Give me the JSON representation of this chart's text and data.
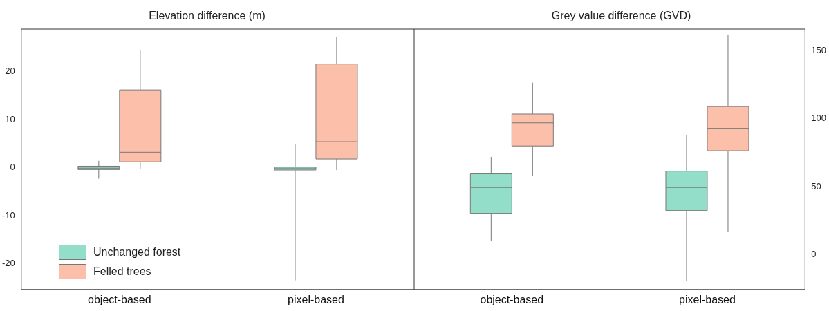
{
  "chart_data": [
    {
      "type": "box",
      "title": "Elevation difference (m)",
      "categories": [
        "object-based",
        "pixel-based"
      ],
      "ylim": [
        -25.4,
        28.9
      ],
      "yticks": [
        -20,
        -10,
        0,
        10,
        20
      ],
      "grid": false,
      "legend": "bottom left",
      "series": [
        {
          "name": "Unchanged forest",
          "color": "#93dec9",
          "boxes": [
            {
              "low": -2.3,
              "q1": -0.4,
              "median": -0.1,
              "q3": 0.3,
              "high": 1.4
            },
            {
              "low": -23.5,
              "q1": -0.5,
              "median": -0.2,
              "q3": 0.1,
              "high": 5
            }
          ]
        },
        {
          "name": "Felled trees",
          "color": "#fcc0aa",
          "boxes": [
            {
              "low": -0.3,
              "q1": 1.2,
              "median": 3.2,
              "q3": 16.2,
              "high": 24.5
            },
            {
              "low": -0.5,
              "q1": 1.8,
              "median": 5.4,
              "q3": 21.6,
              "high": 27.3
            }
          ]
        }
      ]
    },
    {
      "type": "box",
      "title": "Grey value difference (GVD)",
      "categories": [
        "object-based",
        "pixel-based"
      ],
      "ylim": [
        -25.5,
        166
      ],
      "yticks": [
        0,
        50,
        100,
        150
      ],
      "grid": false,
      "series": [
        {
          "color": "#93dec9",
          "boxes": [
            {
              "low": 10.5,
              "q1": 30.5,
              "median": 49.5,
              "q3": 59.5,
              "high": 72
            },
            {
              "low": -19,
              "q1": 32.5,
              "median": 49.5,
              "q3": 61.5,
              "high": 88
            }
          ]
        },
        {
          "color": "#fcc0aa",
          "boxes": [
            {
              "low": 58,
              "q1": 80,
              "median": 97,
              "q3": 103.5,
              "high": 126.5
            },
            {
              "low": 17,
              "q1": 76.5,
              "median": 93,
              "q3": 109,
              "high": 162
            }
          ]
        }
      ]
    }
  ]
}
